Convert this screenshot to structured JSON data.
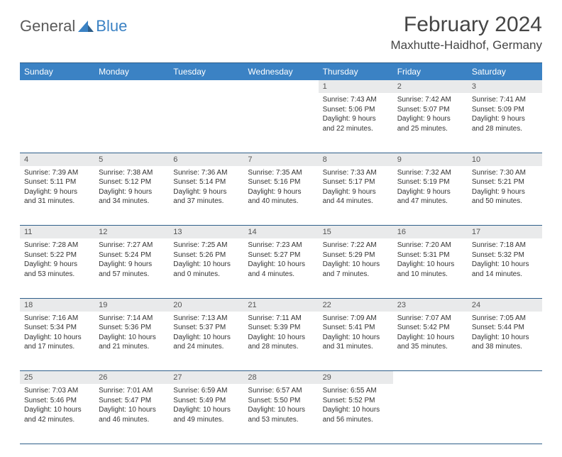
{
  "brand": {
    "part1": "General",
    "part2": "Blue"
  },
  "title": "February 2024",
  "location": "Maxhutte-Haidhof, Germany",
  "colors": {
    "header_bg": "#3b82c4",
    "header_text": "#ffffff",
    "daynum_bg": "#e9eaeb",
    "rule": "#2f5f8a",
    "text": "#333333",
    "brand_gray": "#5a5a5a",
    "brand_blue": "#3b82c4"
  },
  "weekdays": [
    "Sunday",
    "Monday",
    "Tuesday",
    "Wednesday",
    "Thursday",
    "Friday",
    "Saturday"
  ],
  "weeks": [
    [
      null,
      null,
      null,
      null,
      {
        "n": "1",
        "sr": "Sunrise: 7:43 AM",
        "ss": "Sunset: 5:06 PM",
        "d1": "Daylight: 9 hours",
        "d2": "and 22 minutes."
      },
      {
        "n": "2",
        "sr": "Sunrise: 7:42 AM",
        "ss": "Sunset: 5:07 PM",
        "d1": "Daylight: 9 hours",
        "d2": "and 25 minutes."
      },
      {
        "n": "3",
        "sr": "Sunrise: 7:41 AM",
        "ss": "Sunset: 5:09 PM",
        "d1": "Daylight: 9 hours",
        "d2": "and 28 minutes."
      }
    ],
    [
      {
        "n": "4",
        "sr": "Sunrise: 7:39 AM",
        "ss": "Sunset: 5:11 PM",
        "d1": "Daylight: 9 hours",
        "d2": "and 31 minutes."
      },
      {
        "n": "5",
        "sr": "Sunrise: 7:38 AM",
        "ss": "Sunset: 5:12 PM",
        "d1": "Daylight: 9 hours",
        "d2": "and 34 minutes."
      },
      {
        "n": "6",
        "sr": "Sunrise: 7:36 AM",
        "ss": "Sunset: 5:14 PM",
        "d1": "Daylight: 9 hours",
        "d2": "and 37 minutes."
      },
      {
        "n": "7",
        "sr": "Sunrise: 7:35 AM",
        "ss": "Sunset: 5:16 PM",
        "d1": "Daylight: 9 hours",
        "d2": "and 40 minutes."
      },
      {
        "n": "8",
        "sr": "Sunrise: 7:33 AM",
        "ss": "Sunset: 5:17 PM",
        "d1": "Daylight: 9 hours",
        "d2": "and 44 minutes."
      },
      {
        "n": "9",
        "sr": "Sunrise: 7:32 AM",
        "ss": "Sunset: 5:19 PM",
        "d1": "Daylight: 9 hours",
        "d2": "and 47 minutes."
      },
      {
        "n": "10",
        "sr": "Sunrise: 7:30 AM",
        "ss": "Sunset: 5:21 PM",
        "d1": "Daylight: 9 hours",
        "d2": "and 50 minutes."
      }
    ],
    [
      {
        "n": "11",
        "sr": "Sunrise: 7:28 AM",
        "ss": "Sunset: 5:22 PM",
        "d1": "Daylight: 9 hours",
        "d2": "and 53 minutes."
      },
      {
        "n": "12",
        "sr": "Sunrise: 7:27 AM",
        "ss": "Sunset: 5:24 PM",
        "d1": "Daylight: 9 hours",
        "d2": "and 57 minutes."
      },
      {
        "n": "13",
        "sr": "Sunrise: 7:25 AM",
        "ss": "Sunset: 5:26 PM",
        "d1": "Daylight: 10 hours",
        "d2": "and 0 minutes."
      },
      {
        "n": "14",
        "sr": "Sunrise: 7:23 AM",
        "ss": "Sunset: 5:27 PM",
        "d1": "Daylight: 10 hours",
        "d2": "and 4 minutes."
      },
      {
        "n": "15",
        "sr": "Sunrise: 7:22 AM",
        "ss": "Sunset: 5:29 PM",
        "d1": "Daylight: 10 hours",
        "d2": "and 7 minutes."
      },
      {
        "n": "16",
        "sr": "Sunrise: 7:20 AM",
        "ss": "Sunset: 5:31 PM",
        "d1": "Daylight: 10 hours",
        "d2": "and 10 minutes."
      },
      {
        "n": "17",
        "sr": "Sunrise: 7:18 AM",
        "ss": "Sunset: 5:32 PM",
        "d1": "Daylight: 10 hours",
        "d2": "and 14 minutes."
      }
    ],
    [
      {
        "n": "18",
        "sr": "Sunrise: 7:16 AM",
        "ss": "Sunset: 5:34 PM",
        "d1": "Daylight: 10 hours",
        "d2": "and 17 minutes."
      },
      {
        "n": "19",
        "sr": "Sunrise: 7:14 AM",
        "ss": "Sunset: 5:36 PM",
        "d1": "Daylight: 10 hours",
        "d2": "and 21 minutes."
      },
      {
        "n": "20",
        "sr": "Sunrise: 7:13 AM",
        "ss": "Sunset: 5:37 PM",
        "d1": "Daylight: 10 hours",
        "d2": "and 24 minutes."
      },
      {
        "n": "21",
        "sr": "Sunrise: 7:11 AM",
        "ss": "Sunset: 5:39 PM",
        "d1": "Daylight: 10 hours",
        "d2": "and 28 minutes."
      },
      {
        "n": "22",
        "sr": "Sunrise: 7:09 AM",
        "ss": "Sunset: 5:41 PM",
        "d1": "Daylight: 10 hours",
        "d2": "and 31 minutes."
      },
      {
        "n": "23",
        "sr": "Sunrise: 7:07 AM",
        "ss": "Sunset: 5:42 PM",
        "d1": "Daylight: 10 hours",
        "d2": "and 35 minutes."
      },
      {
        "n": "24",
        "sr": "Sunrise: 7:05 AM",
        "ss": "Sunset: 5:44 PM",
        "d1": "Daylight: 10 hours",
        "d2": "and 38 minutes."
      }
    ],
    [
      {
        "n": "25",
        "sr": "Sunrise: 7:03 AM",
        "ss": "Sunset: 5:46 PM",
        "d1": "Daylight: 10 hours",
        "d2": "and 42 minutes."
      },
      {
        "n": "26",
        "sr": "Sunrise: 7:01 AM",
        "ss": "Sunset: 5:47 PM",
        "d1": "Daylight: 10 hours",
        "d2": "and 46 minutes."
      },
      {
        "n": "27",
        "sr": "Sunrise: 6:59 AM",
        "ss": "Sunset: 5:49 PM",
        "d1": "Daylight: 10 hours",
        "d2": "and 49 minutes."
      },
      {
        "n": "28",
        "sr": "Sunrise: 6:57 AM",
        "ss": "Sunset: 5:50 PM",
        "d1": "Daylight: 10 hours",
        "d2": "and 53 minutes."
      },
      {
        "n": "29",
        "sr": "Sunrise: 6:55 AM",
        "ss": "Sunset: 5:52 PM",
        "d1": "Daylight: 10 hours",
        "d2": "and 56 minutes."
      },
      null,
      null
    ]
  ]
}
